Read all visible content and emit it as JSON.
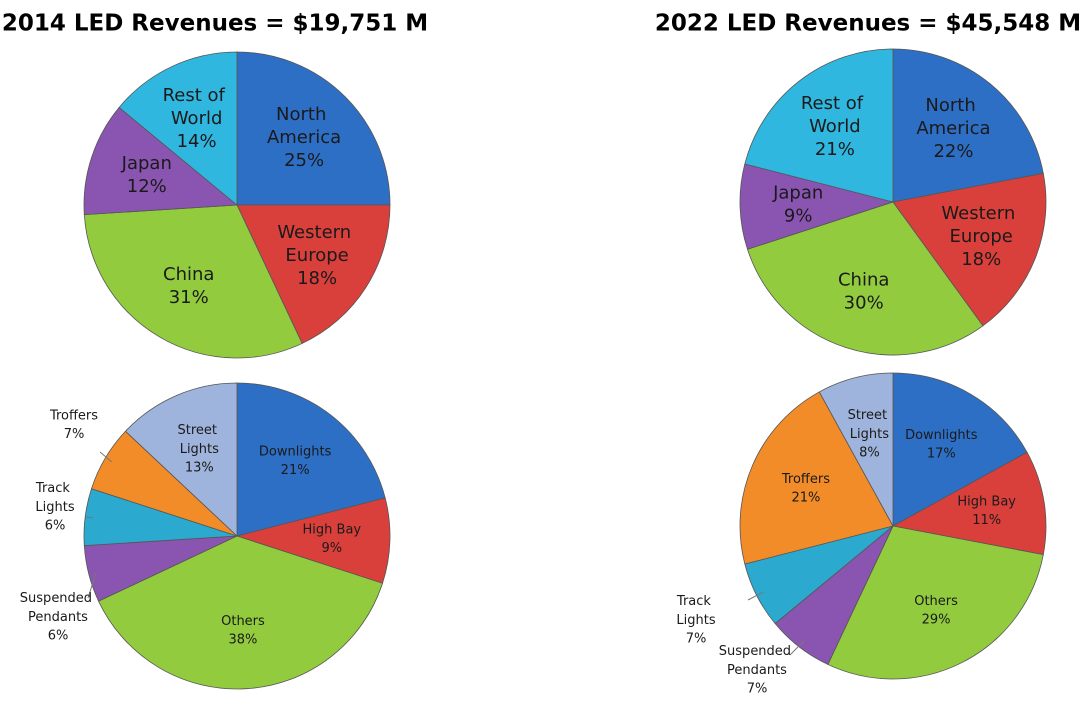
{
  "chart_data": [
    {
      "type": "pie",
      "title": "2014 LED Revenues = $19,751 M",
      "categories": [
        "North America",
        "Western Europe",
        "China",
        "Japan",
        "Rest of World"
      ],
      "values": [
        25,
        18,
        31,
        12,
        14
      ],
      "value_labels": [
        "25%",
        "18%",
        "31%",
        "12%",
        "14%"
      ],
      "colors": [
        "#2e6fc6",
        "#d9403b",
        "#92cc3e",
        "#8a55b0",
        "#2fb7e0"
      ]
    },
    {
      "type": "pie",
      "title": "2022 LED Revenues = $45,548 M",
      "categories": [
        "North America",
        "Western Europe",
        "China",
        "Japan",
        "Rest of World"
      ],
      "values": [
        22,
        18,
        30,
        9,
        21
      ],
      "value_labels": [
        "22%",
        "18%",
        "30%",
        "9%",
        "21%"
      ],
      "colors": [
        "#2e6fc6",
        "#d9403b",
        "#92cc3e",
        "#8a55b0",
        "#2fb7e0"
      ]
    },
    {
      "type": "pie",
      "categories": [
        "Downlights",
        "High Bay",
        "Others",
        "Suspended Pendants",
        "Track Lights",
        "Troffers",
        "Street Lights"
      ],
      "values": [
        21,
        9,
        38,
        6,
        6,
        7,
        13
      ],
      "value_labels": [
        "21%",
        "9%",
        "38%",
        "6%",
        "6%",
        "7%",
        "13%"
      ],
      "colors": [
        "#2e6fc6",
        "#d9403b",
        "#92cc3e",
        "#8a55b0",
        "#2ba9cf",
        "#f28c28",
        "#9fb4dc"
      ]
    },
    {
      "type": "pie",
      "categories": [
        "Downlights",
        "High Bay",
        "Others",
        "Suspended Pendants",
        "Track Lights",
        "Troffers",
        "Street Lights"
      ],
      "values": [
        17,
        11,
        29,
        7,
        7,
        21,
        8
      ],
      "value_labels": [
        "17%",
        "11%",
        "29%",
        "7%",
        "7%",
        "21%",
        "8%"
      ],
      "colors": [
        "#2e6fc6",
        "#d9403b",
        "#92cc3e",
        "#8a55b0",
        "#2ba9cf",
        "#f28c28",
        "#9fb4dc"
      ]
    }
  ]
}
